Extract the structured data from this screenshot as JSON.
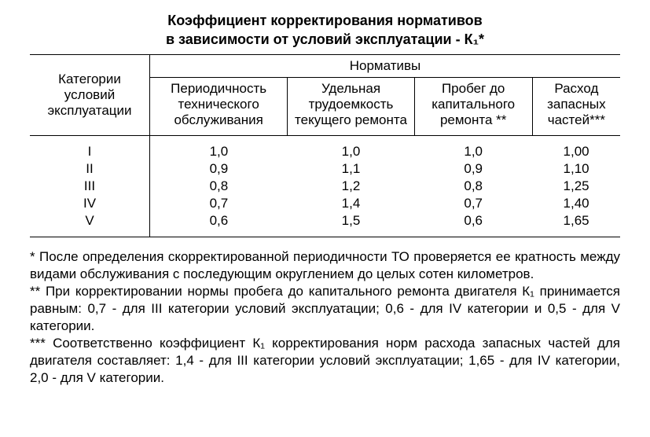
{
  "title_line1": "Коэффициент корректирования нормативов",
  "title_line2": "в зависимости от условий эксплуатации - К₁*",
  "table": {
    "row_header": "Категории условий эксплуатации",
    "group_header": "Нормативы",
    "columns": [
      "Периодичность технического обслуживания",
      "Удельная трудоемкость текущего ремонта",
      "Пробег до капитального ремонта **",
      "Расход запасных частей***"
    ],
    "rows": [
      {
        "cat": "I",
        "c1": "1,0",
        "c2": "1,0",
        "c3": "1,0",
        "c4": "1,00"
      },
      {
        "cat": "II",
        "c1": "0,9",
        "c2": "1,1",
        "c3": "0,9",
        "c4": "1,10"
      },
      {
        "cat": "III",
        "c1": "0,8",
        "c2": "1,2",
        "c3": "0,8",
        "c4": "1,25"
      },
      {
        "cat": "IV",
        "c1": "0,7",
        "c2": "1,4",
        "c3": "0,7",
        "c4": "1,40"
      },
      {
        "cat": "V",
        "c1": "0,6",
        "c2": "1,5",
        "c3": "0,6",
        "c4": "1,65"
      }
    ]
  },
  "footnotes": {
    "n1": "* После определения скорректированной периодичности ТО проверяется ее кратность между видами обслуживания с последующим округлением до целых сотен километров.",
    "n2": "** При корректировании нормы пробега до капитального ремонта двигателя К₁ принимается равным: 0,7 - для III категории условий эксплуатации; 0,6 - для IV категории и 0,5 - для V категории.",
    "n3": "*** Соответственно коэффициент К₁ корректирования норм расхода запасных частей для двигателя составляет: 1,4 - для III категории условий эксплуатации; 1,65 - для IV категории, 2,0 - для V категории."
  }
}
